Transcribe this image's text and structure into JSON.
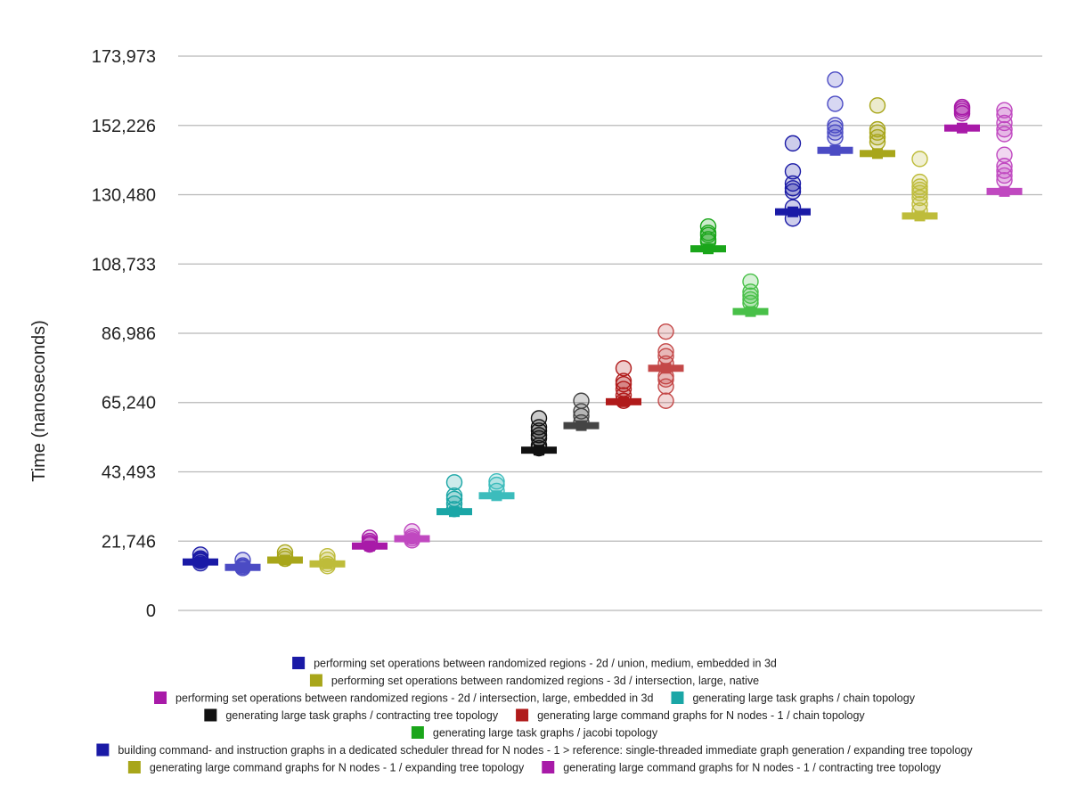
{
  "chart_data": {
    "type": "scatter",
    "title": "",
    "xlabel": "",
    "ylabel": "Time (nanoseconds)",
    "ylim": [
      0,
      173973
    ],
    "y_ticks": [
      0,
      21746,
      43493,
      65240,
      86986,
      108733,
      130480,
      152226,
      173973
    ],
    "y_tick_labels": [
      "0",
      "21,746",
      "43,493",
      "65,240",
      "86,986",
      "108,733",
      "130,480",
      "152,226",
      "173,973"
    ],
    "grid": true,
    "legend_position": "bottom",
    "legend_rows": [
      [
        0
      ],
      [
        1
      ],
      [
        2,
        3
      ],
      [
        4,
        5
      ],
      [
        6
      ],
      [
        7
      ],
      [
        8,
        9
      ]
    ],
    "series": [
      {
        "name": "performing set operations between randomized regions - 2d / union, medium, embedded in 3d",
        "color": "#1a1aa6",
        "median": 15200,
        "samples": [
          14800,
          15500,
          15900,
          16300,
          17500
        ]
      },
      {
        "name": "",
        "color": "#4b4bc4",
        "median": 13500,
        "samples": [
          13300,
          13700,
          14100,
          15800
        ]
      },
      {
        "name": "performing set operations between randomized regions - 3d / intersection, large, native",
        "color": "#a8a61a",
        "median": 15800,
        "samples": [
          16200,
          17000,
          18200
        ]
      },
      {
        "name": "",
        "color": "#bebc3a",
        "median": 14600,
        "samples": [
          13900,
          14600,
          15900,
          17000
        ]
      },
      {
        "name": "performing set operations between randomized regions - 2d / intersection, large, embedded in 3d",
        "color": "#a81aa8",
        "median": 20200,
        "samples": [
          20700,
          21200,
          21800,
          22800
        ]
      },
      {
        "name": "",
        "color": "#c048c0",
        "median": 22500,
        "samples": [
          22000,
          22600,
          23200,
          24800
        ]
      },
      {
        "name": "generating large task graphs / chain topology",
        "color": "#1aa6a6",
        "median": 31000,
        "samples": [
          31800,
          33500,
          35000,
          36000,
          40200
        ]
      },
      {
        "name": "",
        "color": "#3cbcbc",
        "median": 36000,
        "samples": [
          37500,
          39400,
          40500
        ]
      },
      {
        "name": "generating large task graphs / contracting tree topology",
        "color": "#111111",
        "median": 50300,
        "samples": [
          50900,
          51800,
          54000,
          55000,
          56400,
          57500,
          60300
        ]
      },
      {
        "name": "",
        "color": "#444444",
        "median": 58000,
        "samples": [
          59000,
          61000,
          62500,
          65800
        ]
      },
      {
        "name": "generating large command graphs for N nodes - 1 / chain topology",
        "color": "#b01a1a",
        "median": 65500,
        "samples": [
          65800,
          67500,
          69500,
          71000,
          72000,
          76000
        ]
      },
      {
        "name": "",
        "color": "#c44848",
        "median": 76000,
        "samples": [
          65800,
          70300,
          72500,
          73500,
          77500,
          79800,
          81300,
          87500
        ]
      },
      {
        "name": "generating large task graphs / jacobi topology",
        "color": "#1aa61a",
        "median": 113500,
        "samples": [
          115800,
          116500,
          117800,
          118500,
          120500
        ]
      },
      {
        "name": "",
        "color": "#48c048",
        "median": 93800,
        "samples": [
          96500,
          97600,
          98800,
          100000,
          103200
        ]
      },
      {
        "name": "building command- and instruction graphs in a dedicated scheduler thread for N nodes - 1 > reference: single-threaded immediate graph generation / expanding tree topology",
        "color": "#1a1aa6",
        "median": 125100,
        "samples": [
          123000,
          126500,
          131500,
          132500,
          134000,
          137800,
          146600
        ]
      },
      {
        "name": "",
        "color": "#4b4bc4",
        "median": 144400,
        "samples": [
          148500,
          150000,
          151300,
          152300,
          159000,
          166600
        ]
      },
      {
        "name": "generating large command graphs for N nodes - 1 / expanding tree topology",
        "color": "#a8a61a",
        "median": 143400,
        "samples": [
          147000,
          148500,
          150000,
          151000,
          158500
        ]
      },
      {
        "name": "",
        "color": "#bebc3a",
        "median": 123800,
        "samples": [
          125500,
          127500,
          129500,
          131000,
          132000,
          133000,
          134500,
          141700
        ]
      },
      {
        "name": "generating large command graphs for N nodes - 1 / contracting tree topology",
        "color": "#a81aa8",
        "median": 151400,
        "samples": [
          156000,
          156800,
          157500,
          158000
        ]
      },
      {
        "name": "",
        "color": "#c048c0",
        "median": 131500,
        "samples": [
          135000,
          136500,
          138000,
          139500,
          143000,
          149500,
          151000,
          153000,
          155500,
          157000
        ]
      }
    ]
  }
}
